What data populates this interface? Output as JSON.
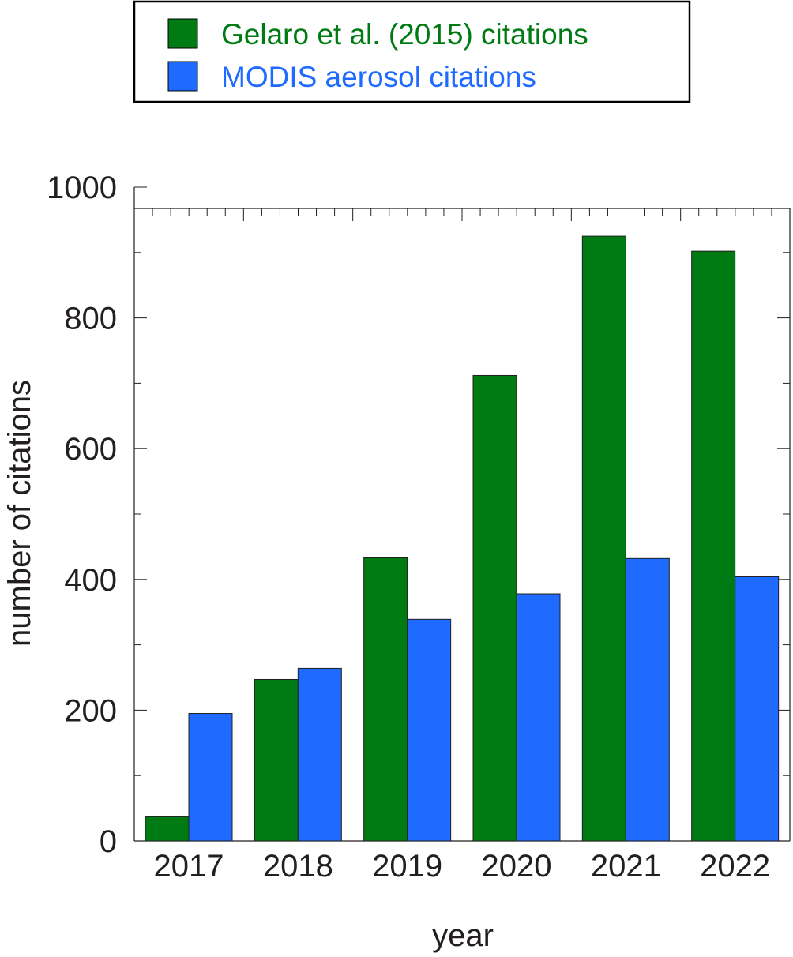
{
  "chart_data": {
    "type": "bar",
    "title": "",
    "xlabel": "year",
    "ylabel": "number of citations",
    "categories": [
      "2017",
      "2018",
      "2019",
      "2020",
      "2021",
      "2022"
    ],
    "series": [
      {
        "name": "Gelaro et al. (2015) citations",
        "color": "#007a12",
        "values": [
          37,
          247,
          433,
          712,
          925,
          902
        ]
      },
      {
        "name": "MODIS aerosol citations",
        "color": "#1f6aff",
        "values": [
          195,
          264,
          339,
          378,
          432,
          404
        ]
      }
    ],
    "ylim": [
      0,
      1000
    ],
    "yticks": [
      0,
      200,
      400,
      600,
      800,
      1000
    ],
    "legend_position": "top",
    "grid": false
  }
}
